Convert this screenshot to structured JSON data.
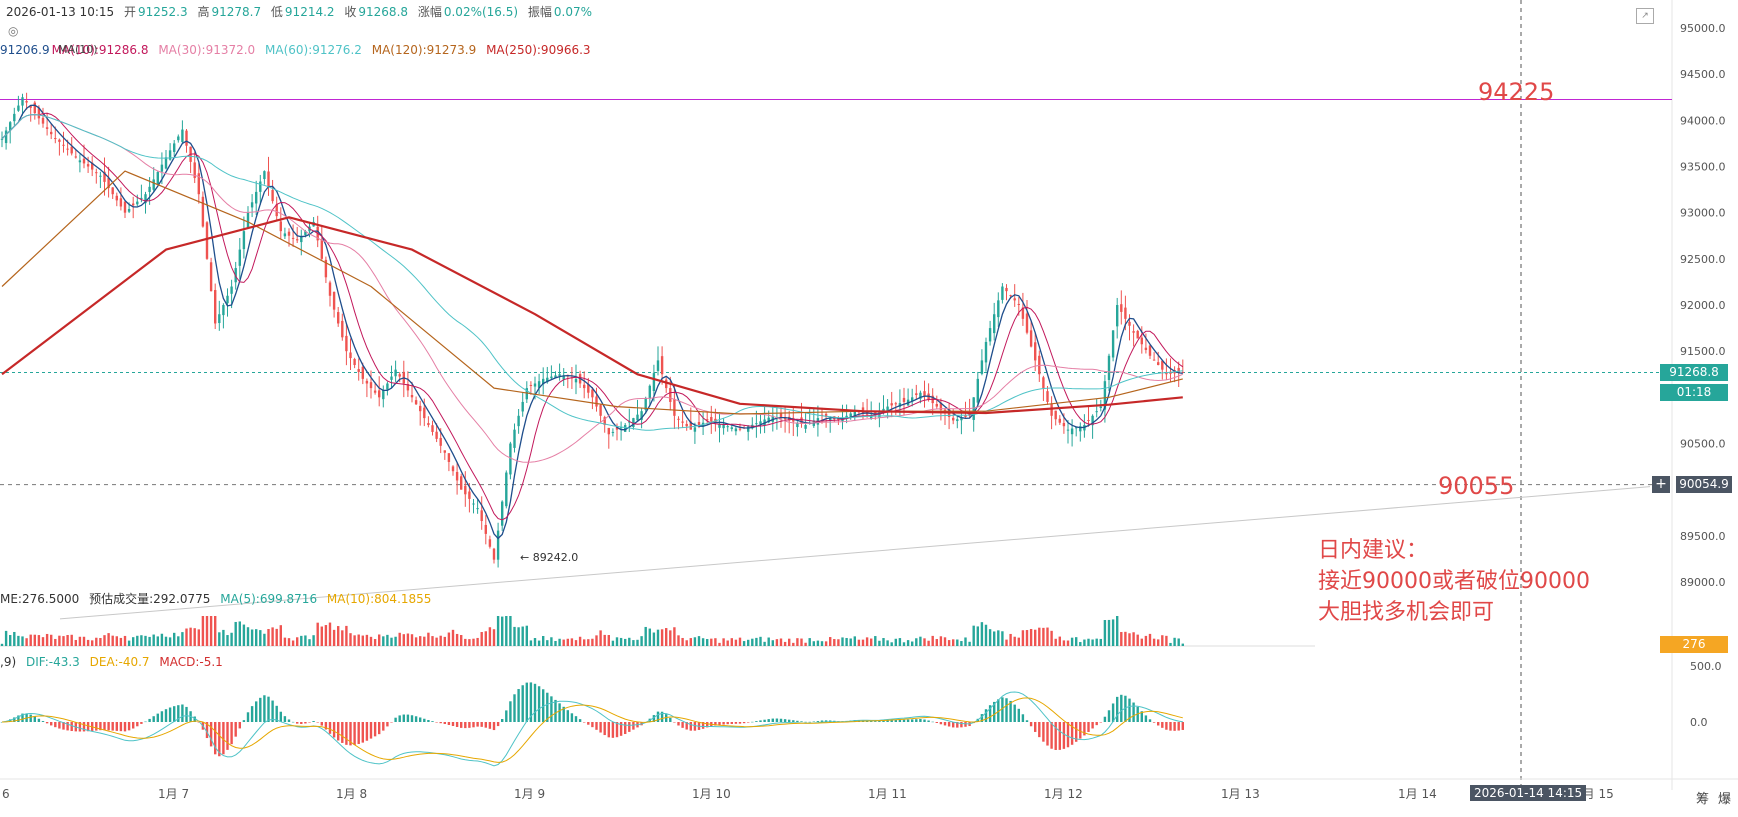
{
  "header": {
    "date": "2026-01-13 10:15",
    "open_label": "开",
    "open": "91252.3",
    "high_label": "高",
    "high": "91278.7",
    "low_label": "低",
    "low": "91214.2",
    "close_label": "收",
    "close": "91268.8",
    "change_label": "涨幅",
    "change": "0.02%(16.5)",
    "amp_label": "振幅",
    "amp": "0.07%"
  },
  "ma_legend": {
    "ma5": "91206.9",
    "ma10": "MA(10):91286.8",
    "ma30": "MA(30):91372.0",
    "ma60": "MA(60):91276.2",
    "ma120": "MA(120):91273.9",
    "ma250": "MA(250):90966.3",
    "overlay": "MA(10)"
  },
  "volume_legend": {
    "vol": "ME:276.5000",
    "est": "预估成交量:292.0775",
    "ma5": "MA(5):699.8716",
    "ma10": "MA(10):804.1855"
  },
  "macd_legend": {
    "params": ",9)",
    "dif": "DIF:-43.3",
    "dea": "DEA:-40.7",
    "macd": "MACD:-5.1"
  },
  "annotations": {
    "level_high": "94225",
    "level_low": "90055",
    "low_marker": "← 89242.0",
    "advice_1": "日内建议：",
    "advice_2": "接近90000或者破位90000",
    "advice_3": "大胆找多机会即可"
  },
  "price_tags": {
    "current": "91268.8",
    "countdown": "01:18",
    "crosshair": "90054.9",
    "volume": "276"
  },
  "crosshair_time": "2026-01-14 14:15",
  "right_corner": [
    "筹",
    "爆"
  ],
  "colors": {
    "up": "#26a69a",
    "down": "#ef5350",
    "level": "#c026d3",
    "ma5": "#1f4e8c",
    "ma10": "#c2185b",
    "ma30": "#e57fa5",
    "ma60": "#4fc3c7",
    "ma120": "#b5651d",
    "ma250": "#c62828",
    "annot": "#e04848"
  },
  "chart_data": {
    "type": "candlestick",
    "y_axis": {
      "ticks": [
        "95000.0",
        "94500.0",
        "94000.0",
        "93500.0",
        "93000.0",
        "92500.0",
        "92000.0",
        "91500.0",
        "90500.0",
        "89500.0",
        "89000.0"
      ],
      "range": [
        88800,
        95200
      ]
    },
    "x_axis": {
      "ticks": [
        "6",
        "1月 7",
        "1月 8",
        "1月 9",
        "1月 10",
        "1月 11",
        "1月 12",
        "1月 13",
        "1月 14",
        "1月 15"
      ]
    },
    "horizontal_levels": [
      94225,
      90055
    ],
    "current_price": 91268.8,
    "marked_low": 89242.0,
    "close_path": [
      [
        0,
        93800
      ],
      [
        5,
        94250
      ],
      [
        12,
        93850
      ],
      [
        18,
        93600
      ],
      [
        24,
        93400
      ],
      [
        30,
        93000
      ],
      [
        35,
        93200
      ],
      [
        40,
        93600
      ],
      [
        44,
        93900
      ],
      [
        48,
        93200
      ],
      [
        52,
        91800
      ],
      [
        56,
        92200
      ],
      [
        60,
        93000
      ],
      [
        64,
        93450
      ],
      [
        68,
        92800
      ],
      [
        72,
        92700
      ],
      [
        76,
        92900
      ],
      [
        80,
        92100
      ],
      [
        84,
        91500
      ],
      [
        88,
        91200
      ],
      [
        92,
        91000
      ],
      [
        96,
        91300
      ],
      [
        100,
        91000
      ],
      [
        104,
        90700
      ],
      [
        108,
        90400
      ],
      [
        112,
        90000
      ],
      [
        116,
        89800
      ],
      [
        120,
        89242
      ],
      [
        124,
        90500
      ],
      [
        128,
        91100
      ],
      [
        132,
        91200
      ],
      [
        136,
        91250
      ],
      [
        140,
        91200
      ],
      [
        144,
        91000
      ],
      [
        148,
        90600
      ],
      [
        152,
        90700
      ],
      [
        156,
        90850
      ],
      [
        160,
        91400
      ],
      [
        164,
        90800
      ],
      [
        168,
        90650
      ],
      [
        172,
        90750
      ],
      [
        176,
        90700
      ],
      [
        180,
        90650
      ],
      [
        184,
        90720
      ],
      [
        188,
        90800
      ],
      [
        192,
        90750
      ],
      [
        196,
        90700
      ],
      [
        200,
        90800
      ],
      [
        204,
        90750
      ],
      [
        208,
        90850
      ],
      [
        212,
        90800
      ],
      [
        216,
        90900
      ],
      [
        220,
        90950
      ],
      [
        224,
        91050
      ],
      [
        228,
        90900
      ],
      [
        232,
        90750
      ],
      [
        236,
        90800
      ],
      [
        240,
        91600
      ],
      [
        244,
        92200
      ],
      [
        248,
        92000
      ],
      [
        252,
        91400
      ],
      [
        256,
        90800
      ],
      [
        260,
        90650
      ],
      [
        264,
        90700
      ],
      [
        268,
        90900
      ],
      [
        272,
        92000
      ],
      [
        276,
        91700
      ],
      [
        280,
        91450
      ],
      [
        284,
        91250
      ],
      [
        288,
        91268.8
      ]
    ],
    "ma250_path": [
      [
        0,
        91250
      ],
      [
        40,
        92600
      ],
      [
        70,
        92950
      ],
      [
        100,
        92600
      ],
      [
        130,
        91900
      ],
      [
        155,
        91250
      ],
      [
        180,
        90930
      ],
      [
        210,
        90850
      ],
      [
        240,
        90830
      ],
      [
        270,
        90920
      ],
      [
        288,
        91000
      ]
    ],
    "ma120_path": [
      [
        0,
        92200
      ],
      [
        30,
        93450
      ],
      [
        60,
        92900
      ],
      [
        90,
        92200
      ],
      [
        120,
        91100
      ],
      [
        150,
        90900
      ],
      [
        180,
        90820
      ],
      [
        210,
        90850
      ],
      [
        240,
        90850
      ],
      [
        270,
        91000
      ],
      [
        288,
        91200
      ]
    ]
  }
}
